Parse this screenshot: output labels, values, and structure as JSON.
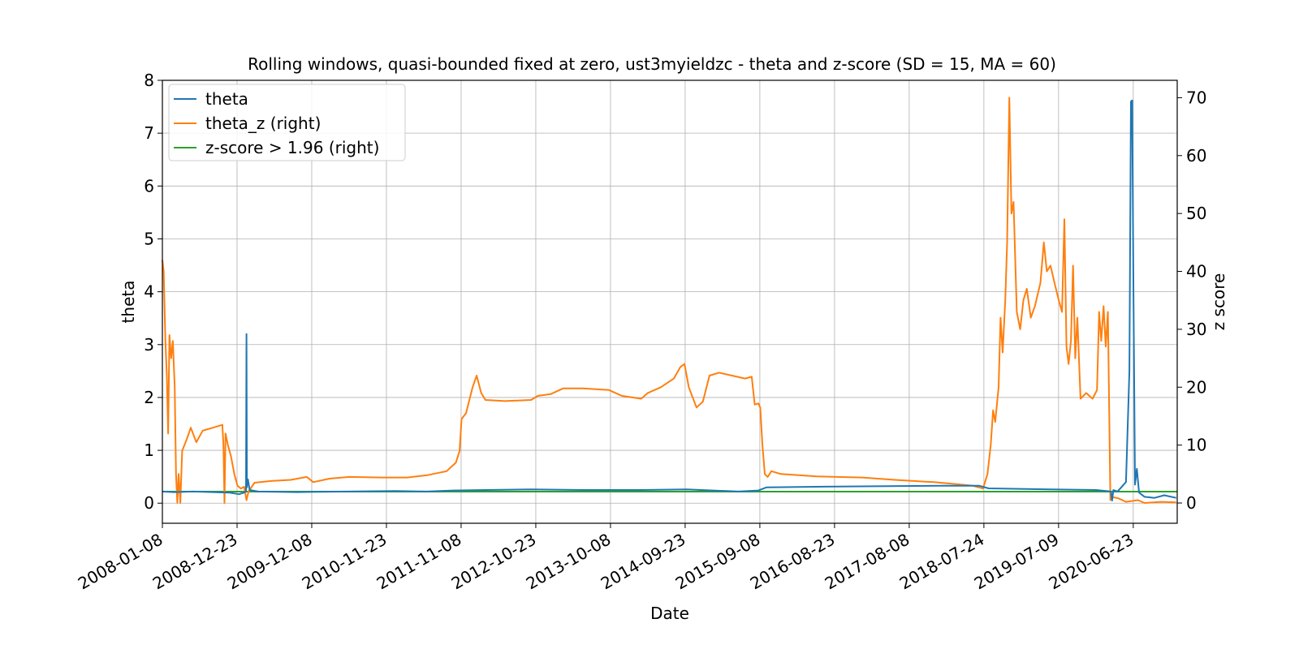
{
  "chart_data": {
    "type": "line",
    "title": "Rolling windows, quasi-bounded fixed at zero, ust3myieldzc - theta and z-score (SD = 15, MA = 60)",
    "xlabel": "Date",
    "ylabel_left": "theta",
    "ylabel_right": "z score",
    "x_range": [
      "2008-01-08",
      "2021-01-15"
    ],
    "ylim_left": [
      -0.38,
      8.0
    ],
    "ylim_right": [
      -3.5,
      73.0
    ],
    "y_ticks_left": [
      0,
      1,
      2,
      3,
      4,
      5,
      6,
      7,
      8
    ],
    "y_ticks_right": [
      0,
      10,
      20,
      30,
      40,
      50,
      60,
      70
    ],
    "x_ticks": [
      "2008-01-08",
      "2008-12-23",
      "2009-12-08",
      "2010-11-23",
      "2011-11-08",
      "2012-10-23",
      "2013-10-08",
      "2014-09-23",
      "2015-09-08",
      "2016-08-23",
      "2017-08-08",
      "2018-07-24",
      "2019-07-09",
      "2020-06-23"
    ],
    "grid": true,
    "legend_position": "top-left",
    "series": [
      {
        "name": "theta",
        "axis": "left",
        "color": "#1f77b4",
        "points": [
          [
            "2008-01-08",
            0.22
          ],
          [
            "2008-03-01",
            0.21
          ],
          [
            "2008-06-01",
            0.22
          ],
          [
            "2008-09-01",
            0.21
          ],
          [
            "2008-11-15",
            0.2
          ],
          [
            "2009-01-01",
            0.17
          ],
          [
            "2009-01-25",
            0.2
          ],
          [
            "2009-02-03",
            0.23
          ],
          [
            "2009-02-05",
            3.2
          ],
          [
            "2009-02-07",
            0.3
          ],
          [
            "2009-02-12",
            0.45
          ],
          [
            "2009-02-20",
            0.25
          ],
          [
            "2009-04-01",
            0.22
          ],
          [
            "2009-10-01",
            0.21
          ],
          [
            "2010-06-01",
            0.22
          ],
          [
            "2011-01-01",
            0.23
          ],
          [
            "2011-06-01",
            0.22
          ],
          [
            "2011-10-01",
            0.24
          ],
          [
            "2012-03-01",
            0.25
          ],
          [
            "2012-10-01",
            0.26
          ],
          [
            "2013-06-01",
            0.25
          ],
          [
            "2014-03-01",
            0.25
          ],
          [
            "2014-10-01",
            0.26
          ],
          [
            "2015-06-01",
            0.22
          ],
          [
            "2015-09-01",
            0.24
          ],
          [
            "2015-10-10",
            0.3
          ],
          [
            "2016-06-01",
            0.31
          ],
          [
            "2017-03-01",
            0.32
          ],
          [
            "2018-01-01",
            0.33
          ],
          [
            "2018-07-01",
            0.33
          ],
          [
            "2018-08-15",
            0.28
          ],
          [
            "2019-06-01",
            0.26
          ],
          [
            "2020-01-01",
            0.25
          ],
          [
            "2020-03-10",
            0.22
          ],
          [
            "2020-03-16",
            0.05
          ],
          [
            "2020-03-22",
            0.25
          ],
          [
            "2020-04-10",
            0.22
          ],
          [
            "2020-05-20",
            0.4
          ],
          [
            "2020-06-05",
            2.5
          ],
          [
            "2020-06-12",
            7.6
          ],
          [
            "2020-06-18",
            7.62
          ],
          [
            "2020-06-24",
            4.0
          ],
          [
            "2020-07-01",
            0.35
          ],
          [
            "2020-07-10",
            0.65
          ],
          [
            "2020-07-20",
            0.2
          ],
          [
            "2020-08-15",
            0.12
          ],
          [
            "2020-10-01",
            0.1
          ],
          [
            "2020-11-15",
            0.15
          ],
          [
            "2021-01-10",
            0.1
          ]
        ]
      },
      {
        "name": "theta_z (right)",
        "axis": "right",
        "color": "#ff7f0e",
        "points": [
          [
            "2008-01-08",
            42.0
          ],
          [
            "2008-01-14",
            40.0
          ],
          [
            "2008-01-22",
            28.0
          ],
          [
            "2008-01-29",
            22.0
          ],
          [
            "2008-02-04",
            12.0
          ],
          [
            "2008-02-10",
            29.0
          ],
          [
            "2008-02-18",
            25.0
          ],
          [
            "2008-02-26",
            28.0
          ],
          [
            "2008-03-06",
            20.0
          ],
          [
            "2008-03-12",
            5.0
          ],
          [
            "2008-03-18",
            0.0
          ],
          [
            "2008-03-24",
            5.0
          ],
          [
            "2008-04-01",
            0.0
          ],
          [
            "2008-04-10",
            9.0
          ],
          [
            "2008-05-01",
            11.0
          ],
          [
            "2008-05-20",
            13.0
          ],
          [
            "2008-06-15",
            10.5
          ],
          [
            "2008-07-15",
            12.5
          ],
          [
            "2008-09-01",
            13.0
          ],
          [
            "2008-10-15",
            13.5
          ],
          [
            "2008-10-20",
            10.0
          ],
          [
            "2008-10-25",
            0.0
          ],
          [
            "2008-10-30",
            12.0
          ],
          [
            "2008-11-10",
            10.0
          ],
          [
            "2008-11-25",
            8.0
          ],
          [
            "2008-12-10",
            5.0
          ],
          [
            "2008-12-25",
            3.0
          ],
          [
            "2009-01-10",
            2.5
          ],
          [
            "2009-01-25",
            2.8
          ],
          [
            "2009-02-05",
            0.5
          ],
          [
            "2009-02-15",
            2.0
          ],
          [
            "2009-03-15",
            3.5
          ],
          [
            "2009-06-01",
            3.8
          ],
          [
            "2009-09-01",
            4.0
          ],
          [
            "2009-11-15",
            4.5
          ],
          [
            "2009-12-15",
            3.6
          ],
          [
            "2010-03-01",
            4.2
          ],
          [
            "2010-06-01",
            4.5
          ],
          [
            "2010-11-01",
            4.4
          ],
          [
            "2011-03-01",
            4.4
          ],
          [
            "2011-06-01",
            4.8
          ],
          [
            "2011-09-01",
            5.5
          ],
          [
            "2011-10-15",
            7.0
          ],
          [
            "2011-11-01",
            9.0
          ],
          [
            "2011-11-10",
            14.5
          ],
          [
            "2011-12-01",
            15.5
          ],
          [
            "2012-01-01",
            20.0
          ],
          [
            "2012-01-20",
            22.0
          ],
          [
            "2012-02-10",
            19.0
          ],
          [
            "2012-03-01",
            17.8
          ],
          [
            "2012-06-01",
            17.6
          ],
          [
            "2012-10-01",
            17.8
          ],
          [
            "2012-11-01",
            18.5
          ],
          [
            "2013-01-01",
            18.8
          ],
          [
            "2013-03-01",
            19.8
          ],
          [
            "2013-06-01",
            19.8
          ],
          [
            "2013-10-01",
            19.5
          ],
          [
            "2013-12-01",
            18.5
          ],
          [
            "2014-03-01",
            18.0
          ],
          [
            "2014-04-01",
            19.0
          ],
          [
            "2014-06-01",
            20.0
          ],
          [
            "2014-08-01",
            21.5
          ],
          [
            "2014-09-01",
            23.5
          ],
          [
            "2014-09-20",
            24.0
          ],
          [
            "2014-10-10",
            20.0
          ],
          [
            "2014-11-15",
            16.5
          ],
          [
            "2014-12-15",
            17.5
          ],
          [
            "2015-01-15",
            22.0
          ],
          [
            "2015-03-01",
            22.5
          ],
          [
            "2015-05-01",
            22.0
          ],
          [
            "2015-07-01",
            21.5
          ],
          [
            "2015-08-01",
            21.8
          ],
          [
            "2015-08-15",
            17.0
          ],
          [
            "2015-09-01",
            17.2
          ],
          [
            "2015-09-10",
            16.5
          ],
          [
            "2015-09-20",
            10.0
          ],
          [
            "2015-10-01",
            5.0
          ],
          [
            "2015-10-15",
            4.5
          ],
          [
            "2015-11-01",
            5.5
          ],
          [
            "2015-12-15",
            5.0
          ],
          [
            "2016-06-01",
            4.6
          ],
          [
            "2017-01-01",
            4.4
          ],
          [
            "2017-06-01",
            4.0
          ],
          [
            "2017-12-01",
            3.6
          ],
          [
            "2018-06-01",
            3.0
          ],
          [
            "2018-07-20",
            2.5
          ],
          [
            "2018-08-10",
            5.0
          ],
          [
            "2018-08-25",
            10.0
          ],
          [
            "2018-09-05",
            16.0
          ],
          [
            "2018-09-15",
            14.0
          ],
          [
            "2018-10-01",
            20.0
          ],
          [
            "2018-10-10",
            32.0
          ],
          [
            "2018-10-20",
            26.0
          ],
          [
            "2018-11-01",
            35.0
          ],
          [
            "2018-11-10",
            45.0
          ],
          [
            "2018-11-20",
            70.0
          ],
          [
            "2018-11-30",
            50.0
          ],
          [
            "2018-12-10",
            52.0
          ],
          [
            "2018-12-25",
            33.0
          ],
          [
            "2019-01-10",
            30.0
          ],
          [
            "2019-01-25",
            35.0
          ],
          [
            "2019-02-10",
            37.0
          ],
          [
            "2019-03-01",
            32.0
          ],
          [
            "2019-03-20",
            34.0
          ],
          [
            "2019-04-15",
            38.0
          ],
          [
            "2019-05-01",
            45.0
          ],
          [
            "2019-05-15",
            40.0
          ],
          [
            "2019-06-01",
            41.0
          ],
          [
            "2019-06-20",
            38.0
          ],
          [
            "2019-07-10",
            35.0
          ],
          [
            "2019-07-25",
            33.0
          ],
          [
            "2019-08-05",
            49.0
          ],
          [
            "2019-08-15",
            27.0
          ],
          [
            "2019-08-25",
            24.0
          ],
          [
            "2019-09-05",
            28.0
          ],
          [
            "2019-09-15",
            41.0
          ],
          [
            "2019-09-25",
            25.0
          ],
          [
            "2019-10-05",
            32.0
          ],
          [
            "2019-10-20",
            18.0
          ],
          [
            "2019-11-15",
            19.0
          ],
          [
            "2019-12-15",
            18.0
          ],
          [
            "2020-01-05",
            19.5
          ],
          [
            "2020-01-15",
            33.0
          ],
          [
            "2020-01-25",
            28.0
          ],
          [
            "2020-02-05",
            34.0
          ],
          [
            "2020-02-15",
            27.0
          ],
          [
            "2020-02-25",
            33.0
          ],
          [
            "2020-03-08",
            0.5
          ],
          [
            "2020-03-20",
            1.0
          ],
          [
            "2020-04-15",
            0.8
          ],
          [
            "2020-05-20",
            0.2
          ],
          [
            "2020-07-15",
            0.5
          ],
          [
            "2020-08-15",
            0.0
          ],
          [
            "2020-11-01",
            0.2
          ],
          [
            "2021-01-10",
            0.1
          ]
        ]
      },
      {
        "name": "z-score > 1.96 (right)",
        "axis": "right",
        "color": "#2ca02c",
        "points": [
          [
            "2008-01-08",
            1.96
          ],
          [
            "2021-01-15",
            1.96
          ]
        ]
      }
    ]
  }
}
